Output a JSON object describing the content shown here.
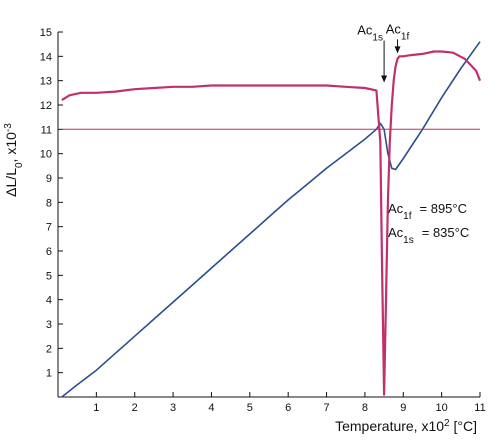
{
  "chart_data": {
    "type": "line",
    "title": "",
    "xlabel": {
      "main": "Temperature, x10",
      "sup": "2",
      "unit": " [°C]"
    },
    "ylabel": {
      "main": "ΔL/L",
      "sub": "0",
      "mid": ", x10",
      "sup": "-3"
    },
    "xlim": [
      0,
      11
    ],
    "ylim": [
      0,
      15
    ],
    "x_ticks": [
      1,
      2,
      3,
      4,
      5,
      6,
      7,
      8,
      9,
      10,
      11
    ],
    "y_ticks": [
      1,
      2,
      3,
      4,
      5,
      6,
      7,
      8,
      9,
      10,
      11,
      12,
      13,
      14,
      15
    ],
    "grid": false,
    "colors": {
      "dilation": "#2b4f8c",
      "derivative": "#c0306a",
      "axis": "#111111"
    },
    "series": [
      {
        "color": "#2b4f8c",
        "x": [
          0.1,
          0.5,
          1.0,
          1.5,
          2.0,
          2.5,
          3.0,
          3.5,
          4.0,
          4.5,
          5.0,
          5.5,
          6.0,
          6.5,
          7.0,
          7.5,
          8.0,
          8.3,
          8.4,
          8.5,
          8.6,
          8.7,
          8.8,
          9.0,
          9.5,
          10.0,
          10.5,
          11.0
        ],
        "y": [
          0.0,
          0.5,
          1.1,
          1.8,
          2.5,
          3.2,
          3.9,
          4.6,
          5.3,
          6.0,
          6.7,
          7.4,
          8.1,
          8.75,
          9.4,
          10.0,
          10.6,
          11.0,
          11.25,
          11.0,
          10.0,
          9.4,
          9.35,
          9.8,
          11.0,
          12.3,
          13.5,
          14.6
        ]
      },
      {
        "color": "#c0306a",
        "x": [
          0.1,
          0.3,
          0.6,
          1.0,
          1.5,
          2.0,
          2.5,
          3.0,
          3.5,
          4.0,
          4.5,
          5.0,
          5.5,
          6.0,
          6.5,
          7.0,
          7.5,
          8.0,
          8.3,
          8.4,
          8.45,
          8.5,
          8.55,
          8.6,
          8.65,
          8.7,
          8.75,
          8.8,
          8.85,
          8.9,
          9.0,
          9.2,
          9.5,
          9.8,
          10.0,
          10.3,
          10.6,
          10.9,
          11.0
        ],
        "y": [
          12.2,
          12.4,
          12.5,
          12.5,
          12.55,
          12.65,
          12.7,
          12.75,
          12.75,
          12.8,
          12.8,
          12.8,
          12.8,
          12.8,
          12.8,
          12.8,
          12.75,
          12.7,
          12.6,
          10.5,
          5.0,
          0.1,
          4.0,
          8.0,
          10.5,
          12.0,
          13.0,
          13.6,
          13.9,
          14.0,
          14.0,
          14.05,
          14.1,
          14.2,
          14.2,
          14.15,
          13.9,
          13.4,
          13.0
        ]
      },
      {
        "color": "#c0306a",
        "x": [
          0.1,
          11.0
        ],
        "y": [
          11.0,
          11.0
        ]
      }
    ],
    "annotations": [
      {
        "main": "Ac",
        "sub": "1s",
        "x": 8.5,
        "y": 12.8
      },
      {
        "main": "Ac",
        "sub": "1f",
        "x": 8.85,
        "y": 14.0
      }
    ],
    "legend_text": [
      {
        "main": "Ac",
        "sub": "1f",
        "value": "= 895°C"
      },
      {
        "main": "Ac",
        "sub": "1s",
        "value": "= 835°C"
      }
    ]
  }
}
